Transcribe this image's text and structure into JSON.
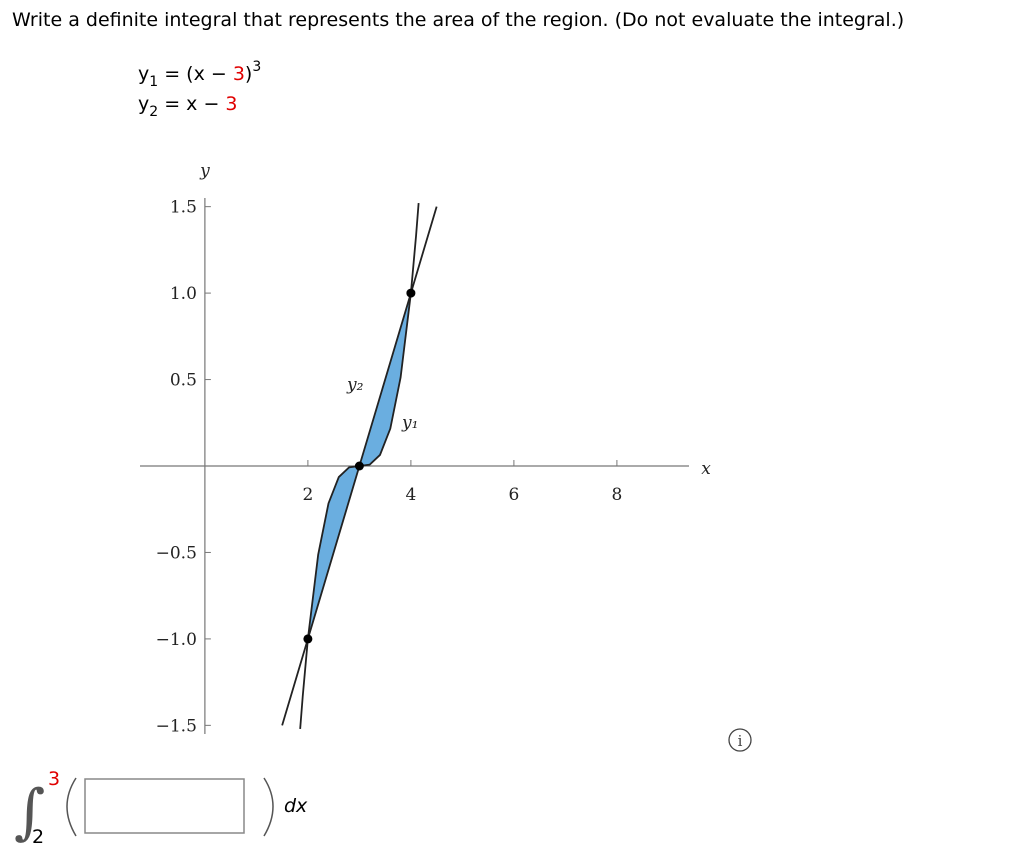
{
  "question": "Write a definite integral that represents the area of the region. (Do not evaluate the integral.)",
  "equations": [
    [
      "y",
      "1",
      " = (x − ",
      "3",
      ")",
      "3"
    ],
    [
      "y",
      "2",
      " = x − ",
      "3"
    ]
  ],
  "graph": {
    "x_label": "x",
    "y_label": "y",
    "xlim": [
      -1.26,
      9.4
    ],
    "ylim": [
      -1.55,
      1.55
    ],
    "xticks": [
      2,
      4,
      6,
      8
    ],
    "yticks": [
      {
        "value": -1.5,
        "label": "−1.5"
      },
      {
        "value": -1,
        "label": "−1.0"
      },
      {
        "value": -0.5,
        "label": "−0.5"
      },
      {
        "value": 0.5,
        "label": "0.5"
      },
      {
        "value": 1,
        "label": "1.0"
      },
      {
        "value": 1.5,
        "label": "1.5"
      }
    ],
    "fill_color": "#6aaee0",
    "series": [
      {
        "name": "y₁",
        "color": "#222222",
        "x": [
          1.85,
          1.9,
          2,
          2.2,
          2.4,
          2.6,
          2.8,
          3,
          3.2,
          3.4,
          3.6,
          3.8,
          4,
          4.1,
          4.15
        ],
        "values": [
          -1.521,
          -1.331,
          -1,
          -0.512,
          -0.216,
          -0.064,
          -0.008,
          0,
          0.008,
          0.064,
          0.216,
          0.512,
          1,
          1.331,
          1.521
        ]
      },
      {
        "name": "y₂",
        "color": "#222222",
        "x": [
          1.5,
          2,
          3,
          4,
          4.5
        ],
        "values": [
          -1.5,
          -1,
          0,
          1,
          1.5
        ]
      }
    ],
    "points": {
      "x": [
        2,
        3,
        4
      ],
      "values": [
        -1,
        0,
        1
      ]
    }
  },
  "answer": {
    "lower": "2",
    "upper": "3",
    "differential": "dx",
    "info": "i"
  }
}
